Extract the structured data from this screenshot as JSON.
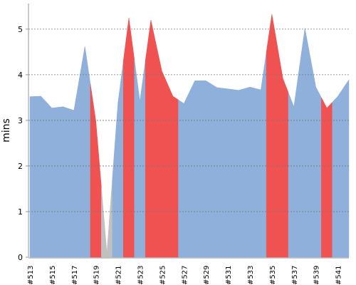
{
  "chart_data": {
    "type": "area",
    "y_label": "mins",
    "categories": [
      "#513",
      null,
      "#515",
      null,
      "#517",
      null,
      "#519",
      null,
      "#521",
      null,
      "#523",
      null,
      "#525",
      null,
      "#527",
      null,
      "#529",
      null,
      "#531",
      null,
      "#533",
      null,
      "#535",
      null,
      "#537",
      null,
      "#539",
      null,
      "#541",
      null
    ],
    "values": [
      3.52,
      3.53,
      3.27,
      3.3,
      3.22,
      4.62,
      2.98,
      0.1,
      3.37,
      5.25,
      3.42,
      5.2,
      4.08,
      3.53,
      3.37,
      3.87,
      3.87,
      3.72,
      3.69,
      3.66,
      3.73,
      3.67,
      5.33,
      3.92,
      3.3,
      5.02,
      3.73,
      3.27,
      3.53,
      3.89
    ],
    "colors": [
      "#8fb0da",
      "#8fb0da",
      "#8fb0da",
      "#8fb0da",
      "#8fb0da",
      "#8fb0da",
      "#f05252",
      "#c0c0c0",
      "#8fb0da",
      "#f05252",
      "#8fb0da",
      "#f05252",
      "#f05252",
      "#f05252",
      "#8fb0da",
      "#8fb0da",
      "#8fb0da",
      "#8fb0da",
      "#8fb0da",
      "#8fb0da",
      "#8fb0da",
      "#8fb0da",
      "#f05252",
      "#f05252",
      "#8fb0da",
      "#8fb0da",
      "#8fb0da",
      "#f05252",
      "#8fb0da",
      "#8fb0da"
    ],
    "ylim": [
      0,
      5.56
    ],
    "yticks": [
      0,
      1,
      2,
      3,
      4,
      5
    ],
    "grid": true
  }
}
